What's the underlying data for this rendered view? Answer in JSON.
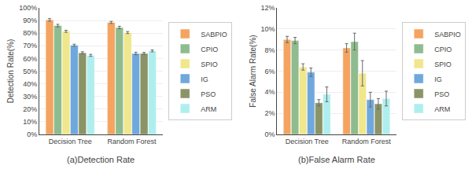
{
  "chart_data": [
    {
      "type": "bar",
      "title": "(a)Detection Rate",
      "ylabel": "Detection Rate(%)",
      "categories": [
        "Decision Tree",
        "Random Forest"
      ],
      "series": [
        {
          "name": "SABPIO",
          "color": "#F4A460",
          "values": [
            90.5,
            88.5
          ],
          "errors": [
            1.0,
            0.8
          ]
        },
        {
          "name": "CPIO",
          "color": "#8FBC8F",
          "values": [
            86.0,
            84.5
          ],
          "errors": [
            1.0,
            1.0
          ]
        },
        {
          "name": "SPIO",
          "color": "#F0E68C",
          "values": [
            81.5,
            80.5
          ],
          "errors": [
            0.8,
            0.8
          ]
        },
        {
          "name": "IG",
          "color": "#6FA8DC",
          "values": [
            70.5,
            64.0
          ],
          "errors": [
            0.8,
            1.0
          ]
        },
        {
          "name": "PSO",
          "color": "#8B9467",
          "values": [
            64.5,
            64.0
          ],
          "errors": [
            0.8,
            0.8
          ]
        },
        {
          "name": "ARM",
          "color": "#AFEEEE",
          "values": [
            62.5,
            66.0
          ],
          "errors": [
            0.8,
            0.8
          ]
        }
      ],
      "ylim": [
        0,
        100
      ],
      "yticks": [
        {
          "value": 0,
          "label": "0%"
        },
        {
          "value": 10,
          "label": "10%"
        },
        {
          "value": 20,
          "label": "20%"
        },
        {
          "value": 30,
          "label": "30%"
        },
        {
          "value": 40,
          "label": "40%"
        },
        {
          "value": 50,
          "label": "50%"
        },
        {
          "value": 60,
          "label": "60%"
        },
        {
          "value": 70,
          "label": "70%"
        },
        {
          "value": 80,
          "label": "80%"
        },
        {
          "value": 90,
          "label": "90%"
        },
        {
          "value": 100,
          "label": "100%"
        }
      ],
      "grid": true,
      "legend": "right"
    },
    {
      "type": "bar",
      "title": "(b)False Alarm Rate",
      "ylabel": "False Alarm Rate(%)",
      "categories": [
        "Decision Tree",
        "Random Forest"
      ],
      "series": [
        {
          "name": "SABPIO",
          "color": "#F4A460",
          "values": [
            9.0,
            8.2
          ],
          "errors": [
            0.3,
            0.4
          ]
        },
        {
          "name": "CPIO",
          "color": "#8FBC8F",
          "values": [
            8.9,
            8.8
          ],
          "errors": [
            0.3,
            0.8
          ]
        },
        {
          "name": "SPIO",
          "color": "#F0E68C",
          "values": [
            6.4,
            5.8
          ],
          "errors": [
            0.3,
            1.2
          ]
        },
        {
          "name": "IG",
          "color": "#6FA8DC",
          "values": [
            5.9,
            3.3
          ],
          "errors": [
            0.4,
            0.7
          ]
        },
        {
          "name": "PSO",
          "color": "#8B9467",
          "values": [
            3.0,
            2.9
          ],
          "errors": [
            0.3,
            0.5
          ]
        },
        {
          "name": "ARM",
          "color": "#AFEEEE",
          "values": [
            3.8,
            3.4
          ],
          "errors": [
            0.7,
            0.7
          ]
        }
      ],
      "ylim": [
        0,
        12
      ],
      "yticks": [
        {
          "value": 0,
          "label": "0%"
        },
        {
          "value": 2,
          "label": "2%"
        },
        {
          "value": 4,
          "label": "4%"
        },
        {
          "value": 6,
          "label": "6%"
        },
        {
          "value": 8,
          "label": "8%"
        },
        {
          "value": 10,
          "label": "10%"
        },
        {
          "value": 12,
          "label": "12%"
        }
      ],
      "grid": true,
      "legend": "right"
    }
  ]
}
